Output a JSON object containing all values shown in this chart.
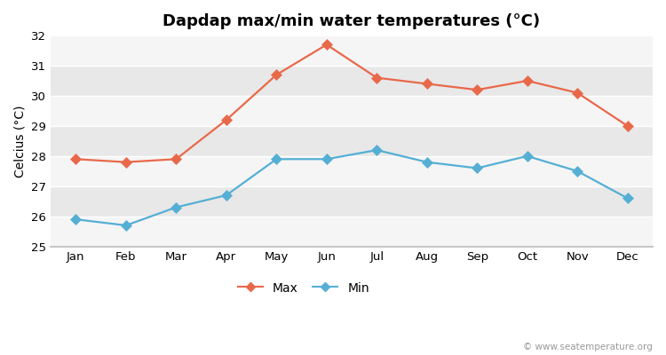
{
  "title": "Dapdap max/min water temperatures (°C)",
  "ylabel": "Celcius (°C)",
  "months": [
    "Jan",
    "Feb",
    "Mar",
    "Apr",
    "May",
    "Jun",
    "Jul",
    "Aug",
    "Sep",
    "Oct",
    "Nov",
    "Dec"
  ],
  "max_temps": [
    27.9,
    27.8,
    27.9,
    29.2,
    30.7,
    31.7,
    30.6,
    30.4,
    30.2,
    30.5,
    30.1,
    29.0
  ],
  "min_temps": [
    25.9,
    25.7,
    26.3,
    26.7,
    27.9,
    27.9,
    28.2,
    27.8,
    27.6,
    28.0,
    27.5,
    26.6
  ],
  "max_color": "#e8694a",
  "min_color": "#55afd4",
  "background_color": "#ffffff",
  "plot_bg_light": "#f5f5f5",
  "plot_bg_dark": "#e8e8e8",
  "spine_color": "#bbbbbb",
  "ylim": [
    25,
    32
  ],
  "yticks": [
    25,
    26,
    27,
    28,
    29,
    30,
    31,
    32
  ],
  "legend_labels": [
    "Max",
    "Min"
  ],
  "watermark": "© www.seatemperature.org",
  "title_fontsize": 13,
  "label_fontsize": 10,
  "tick_fontsize": 9.5,
  "markersize": 6,
  "linewidth": 1.6
}
